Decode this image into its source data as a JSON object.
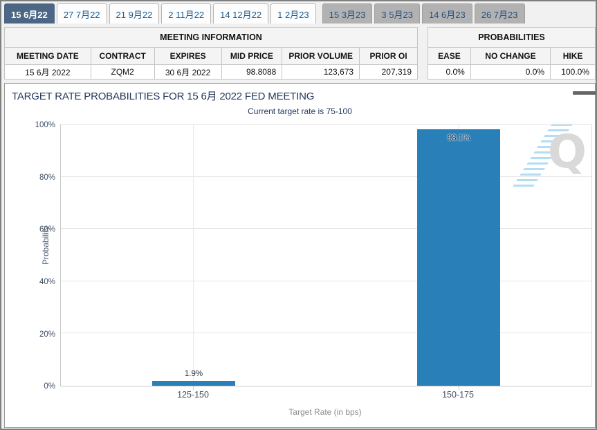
{
  "tabs": [
    {
      "label": "15 6月22",
      "state": "active"
    },
    {
      "label": "27 7月22",
      "state": "normal"
    },
    {
      "label": "21 9月22",
      "state": "normal"
    },
    {
      "label": "2 11月22",
      "state": "normal"
    },
    {
      "label": "14 12月22",
      "state": "normal"
    },
    {
      "label": "1 2月23",
      "state": "normal"
    },
    {
      "label": "15 3月23",
      "state": "disabled"
    },
    {
      "label": "3 5月23",
      "state": "disabled"
    },
    {
      "label": "14 6月23",
      "state": "disabled"
    },
    {
      "label": "26 7月23",
      "state": "disabled"
    }
  ],
  "meeting_info": {
    "title": "MEETING INFORMATION",
    "columns": [
      "MEETING DATE",
      "CONTRACT",
      "EXPIRES",
      "MID PRICE",
      "PRIOR VOLUME",
      "PRIOR OI"
    ],
    "values": [
      "15 6月 2022",
      "ZQM2",
      "30 6月 2022",
      "98.8088",
      "123,673",
      "207,319"
    ]
  },
  "probabilities": {
    "title": "PROBABILITIES",
    "columns": [
      "EASE",
      "NO CHANGE",
      "HIKE"
    ],
    "values": [
      "0.0%",
      "0.0%",
      "100.0%"
    ]
  },
  "chart_data": {
    "type": "bar",
    "title": "TARGET RATE PROBABILITIES FOR 15 6月 2022 FED MEETING",
    "subtitle": "Current target rate is 75-100",
    "categories": [
      "125-150",
      "150-175"
    ],
    "values": [
      1.9,
      98.1
    ],
    "value_labels": [
      "1.9%",
      "98.1%"
    ],
    "xlabel": "Target Rate (in bps)",
    "ylabel": "Probability",
    "ylim": [
      0,
      100
    ],
    "ytick_labels": [
      "0%",
      "20%",
      "40%",
      "60%",
      "80%",
      "100%"
    ],
    "bar_color": "#2980b9",
    "grid": true,
    "legend": "none"
  },
  "colors": {
    "active_tab": "#4b6785",
    "bar": "#2980b9",
    "title_text": "#253a5d"
  },
  "icons": {
    "menu": "hamburger-menu-icon",
    "watermark": "Q"
  }
}
